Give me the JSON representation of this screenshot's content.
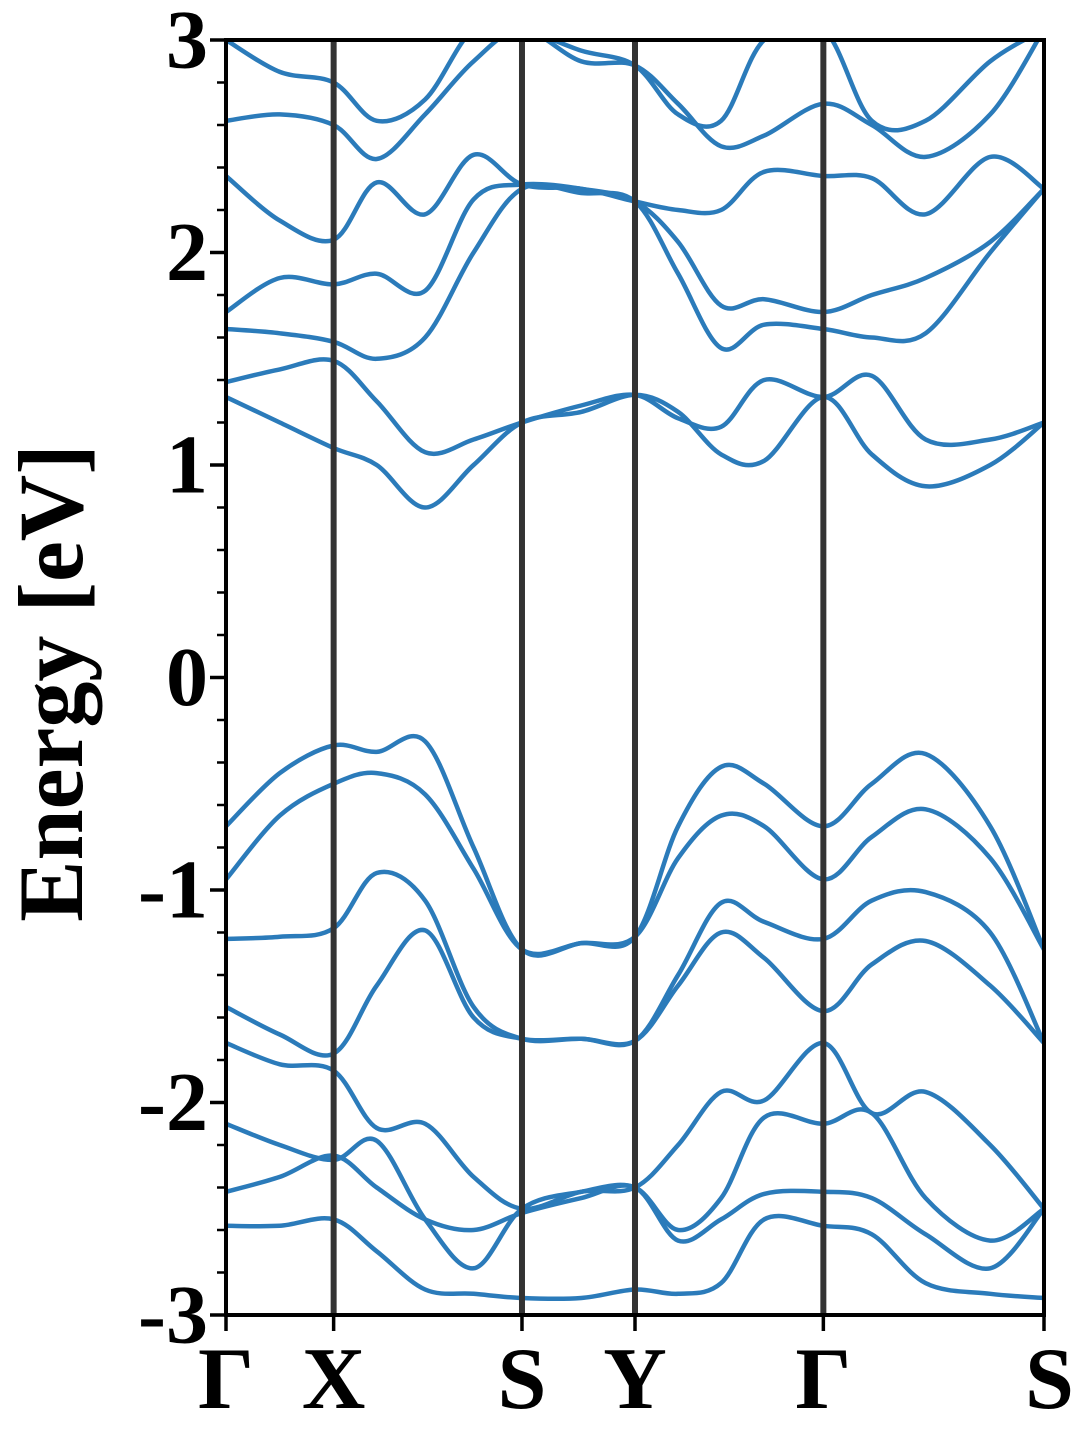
{
  "chart_data": {
    "type": "line",
    "ylabel": "Energy [eV]",
    "xlabel": "",
    "title": "",
    "ylim": [
      -3,
      3
    ],
    "yticks": [
      -3,
      -2,
      -1,
      0,
      1,
      2,
      3
    ],
    "ytick_labels": [
      "-3",
      "-2",
      "-1",
      "0",
      "1",
      "2",
      "3"
    ],
    "kpoints": [
      {
        "label": "Γ",
        "x": 0.0
      },
      {
        "label": "X",
        "x": 1.0
      },
      {
        "label": "S",
        "x": 2.75
      },
      {
        "label": "Y",
        "x": 3.8
      },
      {
        "label": "Γ",
        "x": 5.55
      },
      {
        "label": "S",
        "x": 7.6
      }
    ],
    "grid": false,
    "colors": {
      "band": "#2b7bba",
      "kpath_line": "#333333",
      "axes": "#000000"
    },
    "x_samples": [
      0.0,
      0.5,
      1.0,
      1.4,
      1.85,
      2.3,
      2.75,
      3.3,
      3.8,
      4.2,
      4.6,
      5.0,
      5.55,
      6.0,
      6.5,
      7.1,
      7.6
    ],
    "series": [
      {
        "values": [
          -0.7,
          -0.45,
          -0.32,
          -0.35,
          -0.3,
          -0.8,
          -1.28,
          -1.25,
          -1.22,
          -0.7,
          -0.42,
          -0.5,
          -0.7,
          -0.5,
          -0.36,
          -0.7,
          -1.28
        ]
      },
      {
        "values": [
          -0.95,
          -0.65,
          -0.5,
          -0.45,
          -0.55,
          -0.9,
          -1.28,
          -1.25,
          -1.22,
          -0.85,
          -0.65,
          -0.7,
          -0.95,
          -0.75,
          -0.62,
          -0.85,
          -1.28
        ]
      },
      {
        "values": [
          -1.23,
          -1.22,
          -1.18,
          -0.92,
          -1.05,
          -1.55,
          -1.7,
          -1.7,
          -1.71,
          -1.4,
          -1.06,
          -1.15,
          -1.23,
          -1.05,
          -1.01,
          -1.2,
          -1.72
        ]
      },
      {
        "values": [
          -1.55,
          -1.68,
          -1.77,
          -1.45,
          -1.19,
          -1.6,
          -1.7,
          -1.7,
          -1.71,
          -1.45,
          -1.2,
          -1.32,
          -1.57,
          -1.35,
          -1.24,
          -1.45,
          -1.72
        ]
      },
      {
        "values": [
          -1.72,
          -1.82,
          -1.85,
          -2.12,
          -2.1,
          -2.35,
          -2.5,
          -2.42,
          -2.4,
          -2.2,
          -1.95,
          -1.99,
          -1.72,
          -2.05,
          -1.95,
          -2.2,
          -2.5
        ]
      },
      {
        "values": [
          -2.1,
          -2.2,
          -2.27,
          -2.18,
          -2.55,
          -2.78,
          -2.5,
          -2.42,
          -2.4,
          -2.6,
          -2.45,
          -2.07,
          -2.1,
          -2.05,
          -2.45,
          -2.65,
          -2.5
        ]
      },
      {
        "values": [
          -2.42,
          -2.35,
          -2.25,
          -2.4,
          -2.55,
          -2.6,
          -2.52,
          -2.45,
          -2.4,
          -2.65,
          -2.55,
          -2.43,
          -2.42,
          -2.45,
          -2.62,
          -2.78,
          -2.5
        ]
      },
      {
        "values": [
          -2.58,
          -2.58,
          -2.55,
          -2.7,
          -2.88,
          -2.9,
          -2.92,
          -2.92,
          -2.88,
          -2.9,
          -2.85,
          -2.55,
          -2.58,
          -2.62,
          -2.85,
          -2.9,
          -2.92
        ]
      },
      {
        "values": [
          1.32,
          1.2,
          1.08,
          1.0,
          0.8,
          1.0,
          1.2,
          1.25,
          1.33,
          1.25,
          1.05,
          1.02,
          1.32,
          1.05,
          0.9,
          1.0,
          1.2
        ]
      },
      {
        "values": [
          1.39,
          1.45,
          1.49,
          1.3,
          1.06,
          1.12,
          1.2,
          1.28,
          1.33,
          1.22,
          1.18,
          1.4,
          1.32,
          1.42,
          1.12,
          1.12,
          1.2
        ]
      },
      {
        "values": [
          1.64,
          1.62,
          1.58,
          1.5,
          1.6,
          2.0,
          2.3,
          2.28,
          2.24,
          1.9,
          1.55,
          1.66,
          1.64,
          1.6,
          1.62,
          2.0,
          2.3
        ]
      },
      {
        "values": [
          1.72,
          1.88,
          1.85,
          1.9,
          1.82,
          2.25,
          2.32,
          2.3,
          2.24,
          2.05,
          1.75,
          1.78,
          1.72,
          1.8,
          1.88,
          2.05,
          2.3
        ]
      },
      {
        "values": [
          2.36,
          2.15,
          2.06,
          2.33,
          2.18,
          2.46,
          2.32,
          2.3,
          2.24,
          2.2,
          2.2,
          2.38,
          2.36,
          2.35,
          2.18,
          2.45,
          2.3
        ]
      },
      {
        "values": [
          2.62,
          2.65,
          2.6,
          2.44,
          2.65,
          2.9,
          3.05,
          2.9,
          2.88,
          2.7,
          2.5,
          2.55,
          2.7,
          2.6,
          2.45,
          2.65,
          3.05
        ]
      },
      {
        "values": [
          3.0,
          2.85,
          2.8,
          2.62,
          2.72,
          3.05,
          3.05,
          2.95,
          2.88,
          2.65,
          2.62,
          3.0,
          3.05,
          2.62,
          2.62,
          2.9,
          3.05
        ]
      }
    ]
  }
}
